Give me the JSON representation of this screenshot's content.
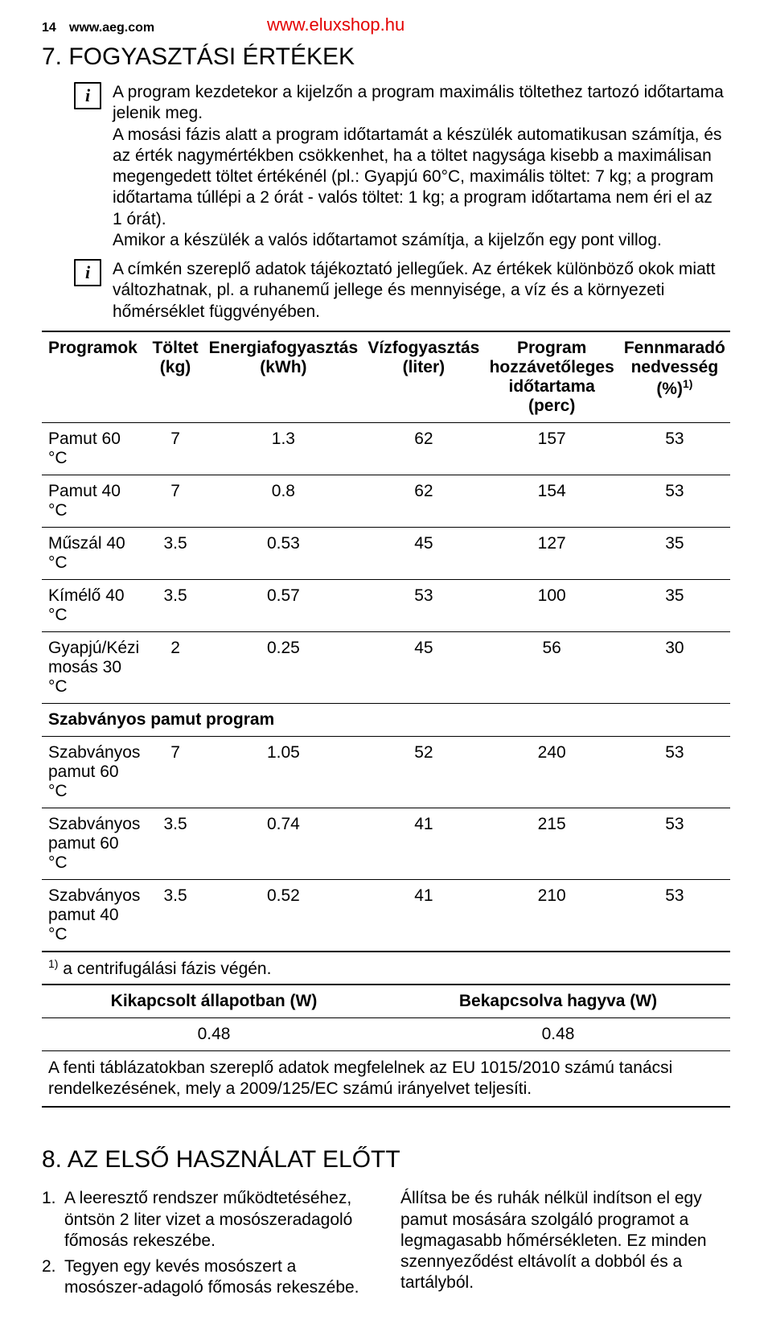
{
  "header": {
    "page_number": "14",
    "aeg_url": "www.aeg.com",
    "top_url": "www.eluxshop.hu"
  },
  "section7": {
    "heading": "7. FOGYASZTÁSI ÉRTÉKEK",
    "info1": "A program kezdetekor a kijelzőn a program maximális töltethez tartozó időtartama jelenik meg.\nA mosási fázis alatt a program időtartamát a készülék automatikusan számítja, és az érték nagymértékben csökkenhet, ha a töltet nagysága kisebb a maximálisan megengedett töltet értékénél (pl.: Gyapjú 60°C, maximális töltet: 7 kg; a program időtartama túllépi a 2 órát - valós töltet: 1 kg; a program időtartama nem éri el az 1 órát).\nAmikor a készülék a valós időtartamot számítja, a kijelzőn egy pont villog.",
    "info2": "A címkén szereplő adatok tájékoztató jellegűek. Az értékek különböző okok miatt változhatnak, pl. a ruhanemű jellege és mennyisége, a víz és a környezeti hőmérséklet függvényében."
  },
  "table": {
    "columns": [
      "Programok",
      "Töltet (kg)",
      "Energiafogyasztás (kWh)",
      "Vízfogyasztás (liter)",
      "Program hozzávetőleges időtartama (perc)",
      "Fennmaradó nedvesség (%)"
    ],
    "footnote_marker": "1)",
    "rows": [
      {
        "name": "Pamut 60 °C",
        "c": [
          "7",
          "1.3",
          "62",
          "157",
          "53"
        ]
      },
      {
        "name": "Pamut 40 °C",
        "c": [
          "7",
          "0.8",
          "62",
          "154",
          "53"
        ]
      },
      {
        "name": "Műszál 40 °C",
        "c": [
          "3.5",
          "0.53",
          "45",
          "127",
          "35"
        ]
      },
      {
        "name": "Kímélő 40 °C",
        "c": [
          "3.5",
          "0.57",
          "53",
          "100",
          "35"
        ]
      },
      {
        "name": "Gyapjú/Kézi mosás 30 °C",
        "c": [
          "2",
          "0.25",
          "45",
          "56",
          "30"
        ]
      }
    ],
    "subheading": "Szabványos pamut program",
    "rows2": [
      {
        "name": "Szabványos pamut 60 °C",
        "c": [
          "7",
          "1.05",
          "52",
          "240",
          "53"
        ]
      },
      {
        "name": "Szabványos pamut 60 °C",
        "c": [
          "3.5",
          "0.74",
          "41",
          "215",
          "53"
        ]
      },
      {
        "name": "Szabványos pamut 40 °C",
        "c": [
          "3.5",
          "0.52",
          "41",
          "210",
          "53"
        ]
      }
    ],
    "footnote": "a centrifugálási fázis végén."
  },
  "table2": {
    "columns": [
      "Kikapcsolt állapotban (W)",
      "Bekapcsolva hagyva (W)"
    ],
    "values": [
      "0.48",
      "0.48"
    ],
    "note": "A fenti táblázatokban szereplő adatok megfelelnek az EU 1015/2010 számú tanácsi rendelkezésének, mely a 2009/125/EC számú irányelvet teljesíti."
  },
  "section8": {
    "heading": "8. AZ ELSŐ HASZNÁLAT ELŐTT",
    "left": [
      {
        "n": "1.",
        "t": "A leeresztő rendszer működtetéséhez, öntsön 2 liter vizet a mosószeradagoló főmosás rekeszébe."
      },
      {
        "n": "2.",
        "t": "Tegyen egy kevés mosószert a mosószer-adagoló főmosás rekeszébe."
      }
    ],
    "right": "Állítsa be és ruhák nélkül indítson el egy pamut mosására szolgáló programot a legmagasabb hőmérsékleten. Ez minden szennyeződést eltávolít a dobból és a tartályból."
  }
}
